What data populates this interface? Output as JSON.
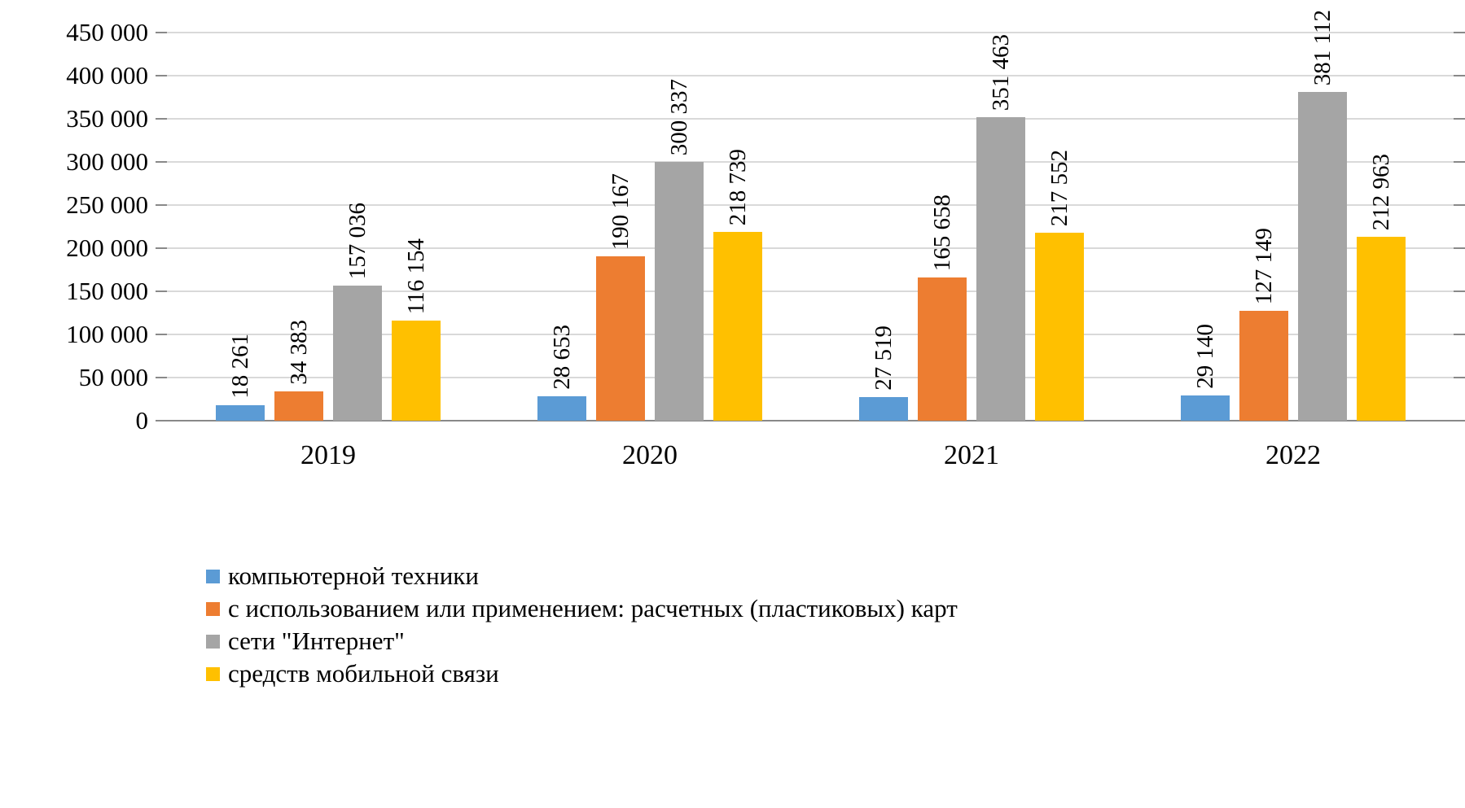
{
  "chart_data": {
    "type": "bar",
    "title": "",
    "xlabel": "",
    "ylabel": "",
    "categories": [
      "2019",
      "2020",
      "2021",
      "2022"
    ],
    "series": [
      {
        "name": "компьютерной техники",
        "color": "#5B9BD5",
        "values": [
          18261,
          28653,
          27519,
          29140
        ]
      },
      {
        "name": "с использованием или применением: расчетных (пластиковых) карт",
        "color": "#ED7D31",
        "values": [
          34383,
          190167,
          165658,
          127149
        ]
      },
      {
        "name": "сети \"Интернет\"",
        "color": "#A5A5A5",
        "values": [
          157036,
          300337,
          351463,
          381112
        ]
      },
      {
        "name": "средств мобильной связи",
        "color": "#FFC000",
        "values": [
          116154,
          218739,
          217552,
          212963
        ]
      }
    ],
    "ylim": [
      0,
      450000
    ],
    "ytick_step": 50000,
    "ytick_labels": [
      "0",
      "50 000",
      "100 000",
      "150 000",
      "200 000",
      "250 000",
      "300 000",
      "350 000",
      "400 000",
      "450 000"
    ],
    "grid": true,
    "data_labels": "rotated 90 degrees above each bar, space thousands separator",
    "legend_position": "bottom-left",
    "colors": {
      "gridline": "#D9D9D9",
      "axis": "#898989",
      "text": "#000000"
    }
  }
}
